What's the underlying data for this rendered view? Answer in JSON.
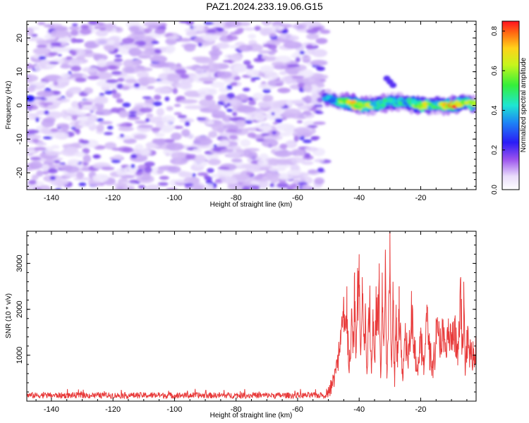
{
  "title": "PAZ1.2024.233.19.06.G15",
  "chart_data": [
    {
      "type": "heatmap",
      "xlabel": "Height of straight line (km)",
      "ylabel": "Frequency (Hz)",
      "xlim": [
        -148,
        -2
      ],
      "ylim": [
        -25,
        25
      ],
      "xticks": [
        -140,
        -120,
        -100,
        -80,
        -60,
        -40,
        -20
      ],
      "yticks": [
        -20,
        -10,
        0,
        10,
        20
      ],
      "colorbar": {
        "label": "Normalized spectral amplitude",
        "range": [
          0.0,
          0.85
        ],
        "ticks": [
          0.0,
          0.2,
          0.4,
          0.6,
          0.8
        ],
        "colormap": "white-purple-blue-cyan-green-yellow-red"
      },
      "description_noise_region": "x from -148 to -51 km: scattered low-amplitude (0.05-0.15) purple blobs over all frequencies",
      "signal_band": {
        "x_range": [
          -51,
          -2
        ],
        "center_frequency_points": [
          [
            -51,
            2
          ],
          [
            -45,
            1
          ],
          [
            -40,
            0
          ],
          [
            -35,
            0
          ],
          [
            -30,
            1
          ],
          [
            -25,
            1
          ],
          [
            -20,
            0
          ],
          [
            -15,
            0
          ],
          [
            -10,
            0
          ],
          [
            -5,
            1
          ],
          [
            -2,
            0
          ]
        ],
        "peak_amplitude_points": [
          [
            -48,
            0.35
          ],
          [
            -42,
            0.8
          ],
          [
            -36,
            0.55
          ],
          [
            -30,
            0.5
          ],
          [
            -25,
            0.4
          ],
          [
            -20,
            0.75
          ],
          [
            -15,
            0.45
          ],
          [
            -10,
            0.85
          ],
          [
            -5,
            0.6
          ]
        ]
      }
    },
    {
      "type": "line",
      "xlabel": "Height of straight line (km)",
      "ylabel": "SNR (10 * v/v)",
      "xlim": [
        -148,
        -2
      ],
      "ylim": [
        0,
        3700
      ],
      "xticks": [
        -140,
        -120,
        -100,
        -80,
        -60,
        -40,
        -20
      ],
      "yticks": [
        1000,
        2000,
        3000
      ],
      "series_color": "#e83a3a",
      "x": [
        -148,
        -140,
        -130,
        -120,
        -110,
        -100,
        -90,
        -80,
        -70,
        -60,
        -55,
        -52,
        -50,
        -49,
        -48,
        -47,
        -46,
        -45,
        -44.5,
        -44,
        -43.5,
        -43,
        -42.5,
        -42,
        -41.5,
        -41,
        -40.5,
        -40,
        -39.5,
        -39,
        -38.5,
        -38,
        -37.5,
        -37,
        -36.5,
        -36,
        -35.5,
        -35,
        -34.5,
        -34,
        -33.5,
        -33,
        -32.5,
        -32,
        -31.5,
        -31,
        -30.5,
        -30,
        -29.5,
        -29,
        -28.5,
        -28,
        -27.5,
        -27,
        -26,
        -25,
        -24,
        -23,
        -22,
        -21,
        -20,
        -19,
        -18,
        -17,
        -16,
        -15,
        -14,
        -13,
        -12,
        -11,
        -10,
        -9,
        -8,
        -7,
        -6.5,
        -6,
        -5.5,
        -5,
        -4,
        -3,
        -2
      ],
      "y": [
        120,
        110,
        130,
        115,
        120,
        110,
        125,
        115,
        130,
        120,
        150,
        180,
        250,
        450,
        600,
        1000,
        1550,
        2200,
        1600,
        2500,
        1300,
        900,
        2000,
        1250,
        2800,
        1100,
        2900,
        3200,
        1000,
        2700,
        1400,
        2050,
        700,
        1800,
        2300,
        600,
        2000,
        900,
        2500,
        1900,
        3000,
        500,
        2800,
        1200,
        3200,
        800,
        1700,
        3700,
        900,
        2600,
        500,
        2100,
        1300,
        2500,
        700,
        1700,
        1200,
        2400,
        1400,
        800,
        1500,
        1000,
        2100,
        1300,
        900,
        1800,
        1600,
        1800,
        1200,
        1800,
        1500,
        1800,
        1100,
        2700,
        1300,
        2600,
        600,
        1550,
        1200,
        1300,
        1350
      ]
    }
  ]
}
